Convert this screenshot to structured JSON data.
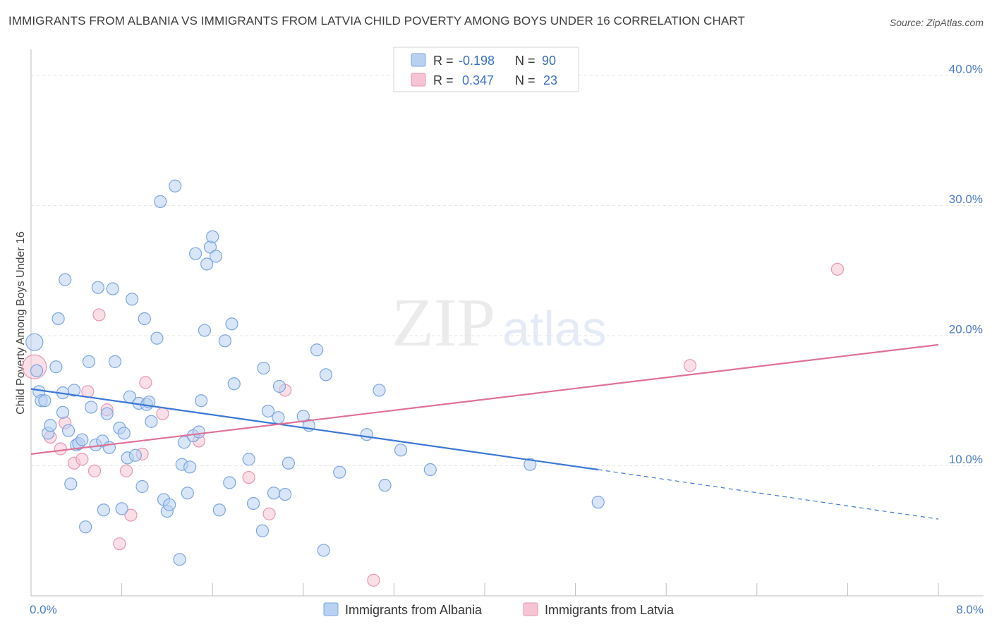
{
  "header": {
    "title": "IMMIGRANTS FROM ALBANIA VS IMMIGRANTS FROM LATVIA CHILD POVERTY AMONG BOYS UNDER 16 CORRELATION CHART",
    "source": "Source: ZipAtlas.com"
  },
  "watermark": {
    "zip": "ZIP",
    "atlas": "atlas"
  },
  "colors": {
    "albania_fill": "#b8d1f3",
    "albania_stroke": "#7aa6e0",
    "albania_line": "#3a78d4",
    "latvia_fill": "#f7c4d4",
    "latvia_stroke": "#e995b2",
    "latvia_line": "#e07097",
    "tick_text": "#4a7cc7"
  },
  "legend": {
    "rows": [
      {
        "r_label": "R = ",
        "r_value": "-0.198",
        "n_label": "N = ",
        "n_value": "90"
      },
      {
        "r_label": "R = ",
        "r_value": " 0.347",
        "n_label": "N = ",
        "n_value": "23"
      }
    ]
  },
  "chart_data": {
    "type": "scatter",
    "title": "IMMIGRANTS FROM ALBANIA VS IMMIGRANTS FROM LATVIA CHILD POVERTY AMONG BOYS UNDER 16 CORRELATION CHART",
    "xlabel": "",
    "ylabel": "Child Poverty Among Boys Under 16",
    "xlim": [
      0,
      8
    ],
    "ylim": [
      0,
      42
    ],
    "x_tick_labels": [
      "0.0%",
      "8.0%"
    ],
    "y_ticks": [
      10,
      20,
      30,
      40
    ],
    "y_tick_labels": [
      "10.0%",
      "20.0%",
      "30.0%",
      "40.0%"
    ],
    "grid": true,
    "legend_position": "top-center",
    "series": [
      {
        "name": "Immigrants from Albania",
        "trend": {
          "x0": 0.0,
          "y0": 15.9,
          "x1": 5.0,
          "y1": 9.7,
          "dash_x1": 8.0,
          "dash_y1": 5.9
        },
        "points": [
          [
            0.03,
            19.5
          ],
          [
            0.05,
            17.3
          ],
          [
            0.07,
            15.7
          ],
          [
            0.09,
            15.0
          ],
          [
            0.12,
            15.0
          ],
          [
            0.15,
            12.5
          ],
          [
            0.17,
            13.1
          ],
          [
            0.22,
            17.6
          ],
          [
            0.24,
            21.3
          ],
          [
            0.28,
            15.6
          ],
          [
            0.28,
            14.1
          ],
          [
            0.3,
            24.3
          ],
          [
            0.33,
            12.7
          ],
          [
            0.35,
            8.6
          ],
          [
            0.38,
            15.8
          ],
          [
            0.4,
            11.6
          ],
          [
            0.42,
            11.7
          ],
          [
            0.45,
            12.0
          ],
          [
            0.48,
            5.3
          ],
          [
            0.51,
            18.0
          ],
          [
            0.53,
            14.5
          ],
          [
            0.57,
            11.6
          ],
          [
            0.59,
            23.7
          ],
          [
            0.63,
            11.9
          ],
          [
            0.64,
            6.6
          ],
          [
            0.67,
            14.0
          ],
          [
            0.69,
            11.4
          ],
          [
            0.72,
            23.6
          ],
          [
            0.74,
            18.0
          ],
          [
            0.78,
            12.9
          ],
          [
            0.8,
            6.7
          ],
          [
            0.82,
            12.5
          ],
          [
            0.85,
            10.6
          ],
          [
            0.87,
            15.3
          ],
          [
            0.89,
            22.8
          ],
          [
            0.92,
            10.8
          ],
          [
            0.95,
            14.8
          ],
          [
            0.98,
            8.4
          ],
          [
            1.0,
            21.3
          ],
          [
            1.02,
            14.7
          ],
          [
            1.04,
            14.9
          ],
          [
            1.06,
            13.4
          ],
          [
            1.11,
            19.8
          ],
          [
            1.14,
            30.3
          ],
          [
            1.17,
            7.4
          ],
          [
            1.2,
            6.5
          ],
          [
            1.22,
            7.0
          ],
          [
            1.27,
            31.5
          ],
          [
            1.31,
            2.8
          ],
          [
            1.33,
            10.1
          ],
          [
            1.35,
            11.8
          ],
          [
            1.38,
            7.9
          ],
          [
            1.4,
            9.9
          ],
          [
            1.43,
            12.3
          ],
          [
            1.45,
            26.3
          ],
          [
            1.48,
            12.6
          ],
          [
            1.5,
            15.0
          ],
          [
            1.53,
            20.4
          ],
          [
            1.55,
            25.5
          ],
          [
            1.58,
            26.8
          ],
          [
            1.6,
            27.6
          ],
          [
            1.63,
            26.1
          ],
          [
            1.66,
            6.6
          ],
          [
            1.71,
            19.6
          ],
          [
            1.75,
            8.7
          ],
          [
            1.77,
            20.9
          ],
          [
            1.79,
            16.3
          ],
          [
            1.92,
            10.5
          ],
          [
            1.96,
            7.1
          ],
          [
            2.04,
            5.0
          ],
          [
            2.05,
            17.5
          ],
          [
            2.09,
            14.2
          ],
          [
            2.14,
            7.9
          ],
          [
            2.18,
            13.7
          ],
          [
            2.19,
            16.1
          ],
          [
            2.24,
            7.8
          ],
          [
            2.27,
            10.2
          ],
          [
            2.4,
            13.8
          ],
          [
            2.45,
            13.1
          ],
          [
            2.52,
            18.9
          ],
          [
            2.58,
            3.5
          ],
          [
            2.6,
            17.0
          ],
          [
            2.72,
            9.5
          ],
          [
            2.96,
            12.4
          ],
          [
            3.07,
            15.8
          ],
          [
            3.12,
            8.5
          ],
          [
            3.26,
            11.2
          ],
          [
            3.52,
            9.7
          ],
          [
            4.4,
            10.1
          ],
          [
            5.0,
            7.2
          ]
        ]
      },
      {
        "name": "Immigrants from Latvia",
        "trend": {
          "x0": 0.0,
          "y0": 10.9,
          "x1": 8.0,
          "y1": 19.3
        },
        "points": [
          [
            0.03,
            17.6
          ],
          [
            0.17,
            12.2
          ],
          [
            0.26,
            11.3
          ],
          [
            0.3,
            13.3
          ],
          [
            0.38,
            10.2
          ],
          [
            0.45,
            10.5
          ],
          [
            0.5,
            15.7
          ],
          [
            0.56,
            9.6
          ],
          [
            0.6,
            21.6
          ],
          [
            0.67,
            14.3
          ],
          [
            0.78,
            4.0
          ],
          [
            0.84,
            9.6
          ],
          [
            0.88,
            6.2
          ],
          [
            0.98,
            10.9
          ],
          [
            1.01,
            16.4
          ],
          [
            1.16,
            14.0
          ],
          [
            1.48,
            11.9
          ],
          [
            1.92,
            9.1
          ],
          [
            2.1,
            6.3
          ],
          [
            2.24,
            15.8
          ],
          [
            3.02,
            1.2
          ],
          [
            5.81,
            17.7
          ],
          [
            7.11,
            25.1
          ]
        ]
      }
    ]
  },
  "bottom_legend": {
    "albania": "Immigrants from Albania",
    "latvia": "Immigrants from Latvia"
  }
}
